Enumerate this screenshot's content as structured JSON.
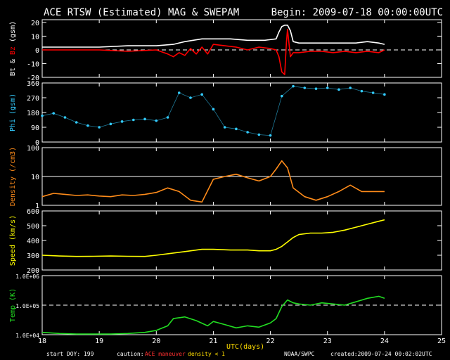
{
  "header": {
    "title": "ACE RTSW (Estimated) MAG & SWEPAM",
    "begin": "Begin: 2009-07-18 00:00:00UTC"
  },
  "footer": {
    "start_doy": "start DOY: 199",
    "caution": "caution:",
    "ace_maneuver": "ACE maneuver",
    "density_note": "density < 1",
    "xlabel": "UTC(days)",
    "agency": "NOAA/SWPC",
    "created": "created:2009-07-24 00:02:02UTC"
  },
  "colors": {
    "bt": "#ffffff",
    "bz": "#ff0000",
    "phi": "#33ccff",
    "density": "#ff8c1a",
    "speed": "#ffff00",
    "temp": "#22dd22",
    "ace_maneuver": "#ff3030",
    "density_note": "#ffdd00",
    "background": "#000000"
  },
  "chart_data": [
    {
      "type": "line",
      "ylabel_parts": [
        {
          "text": "Bt",
          "color": "#ffffff"
        },
        {
          "text": " & ",
          "color": "#ffffff"
        },
        {
          "text": "Bz",
          "color": "#ff0000"
        },
        {
          "text": " (gsm)",
          "color": "#ffffff"
        }
      ],
      "ylim": [
        -20,
        22
      ],
      "yticks": [
        20,
        10,
        0,
        -10,
        -20
      ],
      "ytick_labels": [
        "20",
        "10",
        "0",
        "-10",
        "-20"
      ],
      "reference_line": 0,
      "series": [
        {
          "name": "Bt",
          "color": "#ffffff",
          "x": [
            18.0,
            18.5,
            19.0,
            19.5,
            20.0,
            20.3,
            20.5,
            20.8,
            21.0,
            21.3,
            21.6,
            21.9,
            22.1,
            22.15,
            22.2,
            22.25,
            22.3,
            22.35,
            22.4,
            22.5,
            22.7,
            22.9,
            23.1,
            23.3,
            23.5,
            23.7,
            23.9,
            24.0
          ],
          "y": [
            2,
            2,
            2,
            3,
            3,
            4,
            6,
            8,
            8,
            8,
            7,
            7,
            8,
            13,
            17,
            18,
            18,
            14,
            6,
            5,
            5,
            5,
            5,
            5,
            5,
            6,
            5,
            4
          ]
        },
        {
          "name": "Bz",
          "color": "#ff0000",
          "x": [
            18.0,
            18.5,
            19.0,
            19.5,
            20.0,
            20.2,
            20.3,
            20.4,
            20.5,
            20.6,
            20.7,
            20.8,
            20.9,
            21.0,
            21.2,
            21.4,
            21.6,
            21.8,
            22.0,
            22.1,
            22.15,
            22.2,
            22.25,
            22.28,
            22.3,
            22.35,
            22.4,
            22.5,
            22.7,
            22.9,
            23.1,
            23.3,
            23.5,
            23.7,
            23.9,
            24.0
          ],
          "y": [
            0,
            0,
            0,
            -1,
            0,
            -3,
            -5,
            -2,
            -4,
            1,
            -3,
            2,
            -3,
            4,
            3,
            2,
            0,
            2,
            1,
            0,
            -5,
            -16,
            -18,
            5,
            15,
            -5,
            -2,
            -2,
            -1,
            -1,
            -2,
            -1,
            -2,
            -1,
            -2,
            0
          ]
        }
      ]
    },
    {
      "type": "scatter",
      "ylabel_parts": [
        {
          "text": "Phi (gsm)",
          "color": "#33ccff"
        }
      ],
      "ylim": [
        0,
        360
      ],
      "yticks": [
        360,
        270,
        180,
        90,
        0
      ],
      "ytick_labels": [
        "360",
        "270",
        "180",
        "90",
        "0"
      ],
      "series": [
        {
          "name": "Phi",
          "color": "#33ccff",
          "x": [
            18.0,
            18.2,
            18.4,
            18.6,
            18.8,
            19.0,
            19.2,
            19.4,
            19.6,
            19.8,
            20.0,
            20.2,
            20.4,
            20.6,
            20.8,
            21.0,
            21.2,
            21.4,
            21.6,
            21.8,
            22.0,
            22.2,
            22.4,
            22.6,
            22.8,
            23.0,
            23.2,
            23.4,
            23.6,
            23.8,
            24.0
          ],
          "y": [
            160,
            175,
            150,
            120,
            100,
            90,
            110,
            125,
            135,
            140,
            130,
            150,
            300,
            270,
            290,
            200,
            90,
            80,
            60,
            45,
            40,
            280,
            340,
            330,
            325,
            330,
            320,
            330,
            310,
            300,
            290
          ]
        }
      ]
    },
    {
      "type": "line",
      "ylabel_parts": [
        {
          "text": "Density (/cm3)",
          "color": "#ff8c1a"
        }
      ],
      "yscale": "log",
      "ylim": [
        1,
        100
      ],
      "yticks": [
        100,
        10,
        1
      ],
      "ytick_labels": [
        "100",
        "10",
        "1"
      ],
      "reference_line": 10,
      "series": [
        {
          "name": "Density",
          "color": "#ff8c1a",
          "x": [
            18.0,
            18.2,
            18.4,
            18.6,
            18.8,
            19.0,
            19.2,
            19.4,
            19.6,
            19.8,
            20.0,
            20.2,
            20.4,
            20.6,
            20.8,
            21.0,
            21.2,
            21.4,
            21.6,
            21.8,
            22.0,
            22.1,
            22.2,
            22.3,
            22.4,
            22.6,
            22.8,
            23.0,
            23.2,
            23.4,
            23.6,
            23.8,
            24.0
          ],
          "y": [
            2,
            2.6,
            2.4,
            2.2,
            2.3,
            2.1,
            2.0,
            2.3,
            2.2,
            2.4,
            2.8,
            4,
            3,
            1.5,
            1.3,
            8,
            10,
            12,
            9,
            7,
            10,
            18,
            35,
            20,
            4,
            2,
            1.5,
            2.0,
            3,
            5,
            3,
            3,
            3
          ]
        }
      ]
    },
    {
      "type": "line",
      "ylabel_parts": [
        {
          "text": "Speed (km/s)",
          "color": "#ffff00"
        }
      ],
      "ylim": [
        200,
        600
      ],
      "yticks": [
        600,
        500,
        400,
        300,
        200
      ],
      "ytick_labels": [
        "600",
        "500",
        "400",
        "300",
        "200"
      ],
      "series": [
        {
          "name": "Speed",
          "color": "#ffff00",
          "x": [
            18.0,
            18.3,
            18.6,
            18.9,
            19.2,
            19.5,
            19.8,
            20.0,
            20.2,
            20.5,
            20.8,
            21.0,
            21.3,
            21.6,
            21.8,
            22.0,
            22.1,
            22.2,
            22.3,
            22.4,
            22.5,
            22.7,
            22.9,
            23.1,
            23.3,
            23.5,
            23.7,
            23.9,
            24.0
          ],
          "y": [
            300,
            295,
            292,
            293,
            295,
            293,
            292,
            300,
            310,
            325,
            340,
            340,
            335,
            335,
            330,
            330,
            340,
            360,
            390,
            420,
            440,
            450,
            450,
            455,
            470,
            490,
            510,
            530,
            540
          ]
        }
      ]
    },
    {
      "type": "line",
      "ylabel_parts": [
        {
          "text": "Temp (K)",
          "color": "#22dd22"
        }
      ],
      "yscale": "log",
      "ylim": [
        10000,
        1000000
      ],
      "yticks": [
        1000000,
        100000,
        10000
      ],
      "ytick_labels": [
        "1.0E+06",
        "1.0E+05",
        "1.0E+04"
      ],
      "reference_line": 100000,
      "series": [
        {
          "name": "Temp",
          "color": "#22dd22",
          "x": [
            18.0,
            18.3,
            18.6,
            18.9,
            19.2,
            19.5,
            19.8,
            20.0,
            20.2,
            20.3,
            20.5,
            20.7,
            20.9,
            21.0,
            21.2,
            21.4,
            21.6,
            21.8,
            22.0,
            22.1,
            22.2,
            22.3,
            22.4,
            22.5,
            22.7,
            22.9,
            23.1,
            23.3,
            23.5,
            23.7,
            23.9,
            24.0
          ],
          "y": [
            12000,
            11000,
            10500,
            10500,
            10500,
            11000,
            12000,
            14000,
            20000,
            35000,
            40000,
            30000,
            20000,
            28000,
            22000,
            17000,
            20000,
            18000,
            25000,
            35000,
            90000,
            150000,
            120000,
            110000,
            100000,
            120000,
            110000,
            100000,
            130000,
            170000,
            200000,
            170000
          ]
        }
      ]
    }
  ],
  "x_axis": {
    "xlim": [
      18,
      25
    ],
    "xticks": [
      18,
      19,
      20,
      21,
      22,
      23,
      24,
      25
    ],
    "xtick_labels": [
      "18",
      "19",
      "20",
      "21",
      "22",
      "23",
      "24",
      "25"
    ]
  }
}
